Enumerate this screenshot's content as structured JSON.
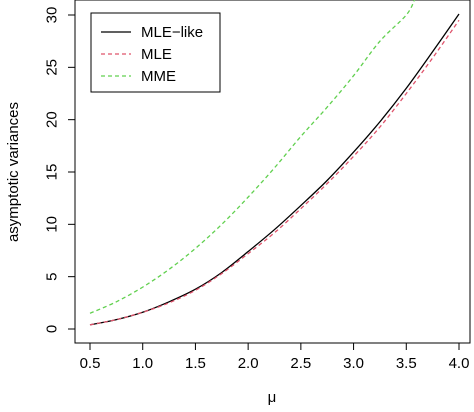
{
  "chart_data": {
    "type": "line",
    "xlabel": "μ",
    "ylabel": "asymptotic variances",
    "xlim": [
      0.5,
      4.0
    ],
    "ylim": [
      0,
      30
    ],
    "x_ticks": [
      "0.5",
      "1.0",
      "1.5",
      "2.0",
      "2.5",
      "3.0",
      "3.5",
      "4.0"
    ],
    "y_ticks": [
      "0",
      "5",
      "10",
      "15",
      "20",
      "25",
      "30"
    ],
    "grid": false,
    "legend_position": "top-left",
    "series": [
      {
        "name": "MLE−like",
        "color": "#000000",
        "dash": "solid",
        "x": [
          0.5,
          0.75,
          1.0,
          1.25,
          1.5,
          1.75,
          2.0,
          2.25,
          2.5,
          2.75,
          3.0,
          3.25,
          3.5,
          3.75,
          4.0
        ],
        "y": [
          0.4,
          0.9,
          1.6,
          2.6,
          3.8,
          5.4,
          7.4,
          9.5,
          11.8,
          14.2,
          16.9,
          19.8,
          23.0,
          26.5,
          30.1
        ]
      },
      {
        "name": "MLE",
        "color": "#df536b",
        "dash": "dashed",
        "x": [
          0.5,
          0.75,
          1.0,
          1.25,
          1.5,
          1.75,
          2.0,
          2.25,
          2.5,
          2.75,
          3.0,
          3.25,
          3.5,
          3.75,
          4.0
        ],
        "y": [
          0.4,
          0.9,
          1.6,
          2.5,
          3.7,
          5.3,
          7.2,
          9.2,
          11.5,
          13.9,
          16.5,
          19.3,
          22.5,
          25.9,
          29.5
        ]
      },
      {
        "name": "MME",
        "color": "#61d04f",
        "dash": "dashed",
        "x": [
          0.5,
          0.75,
          1.0,
          1.25,
          1.5,
          1.75,
          2.0,
          2.25,
          2.5,
          2.75,
          3.0,
          3.25,
          3.5,
          3.58
        ],
        "y": [
          1.5,
          2.6,
          4.0,
          5.7,
          7.7,
          10.0,
          12.6,
          15.4,
          18.4,
          21.2,
          24.2,
          27.5,
          30.0,
          31.5
        ]
      }
    ]
  }
}
